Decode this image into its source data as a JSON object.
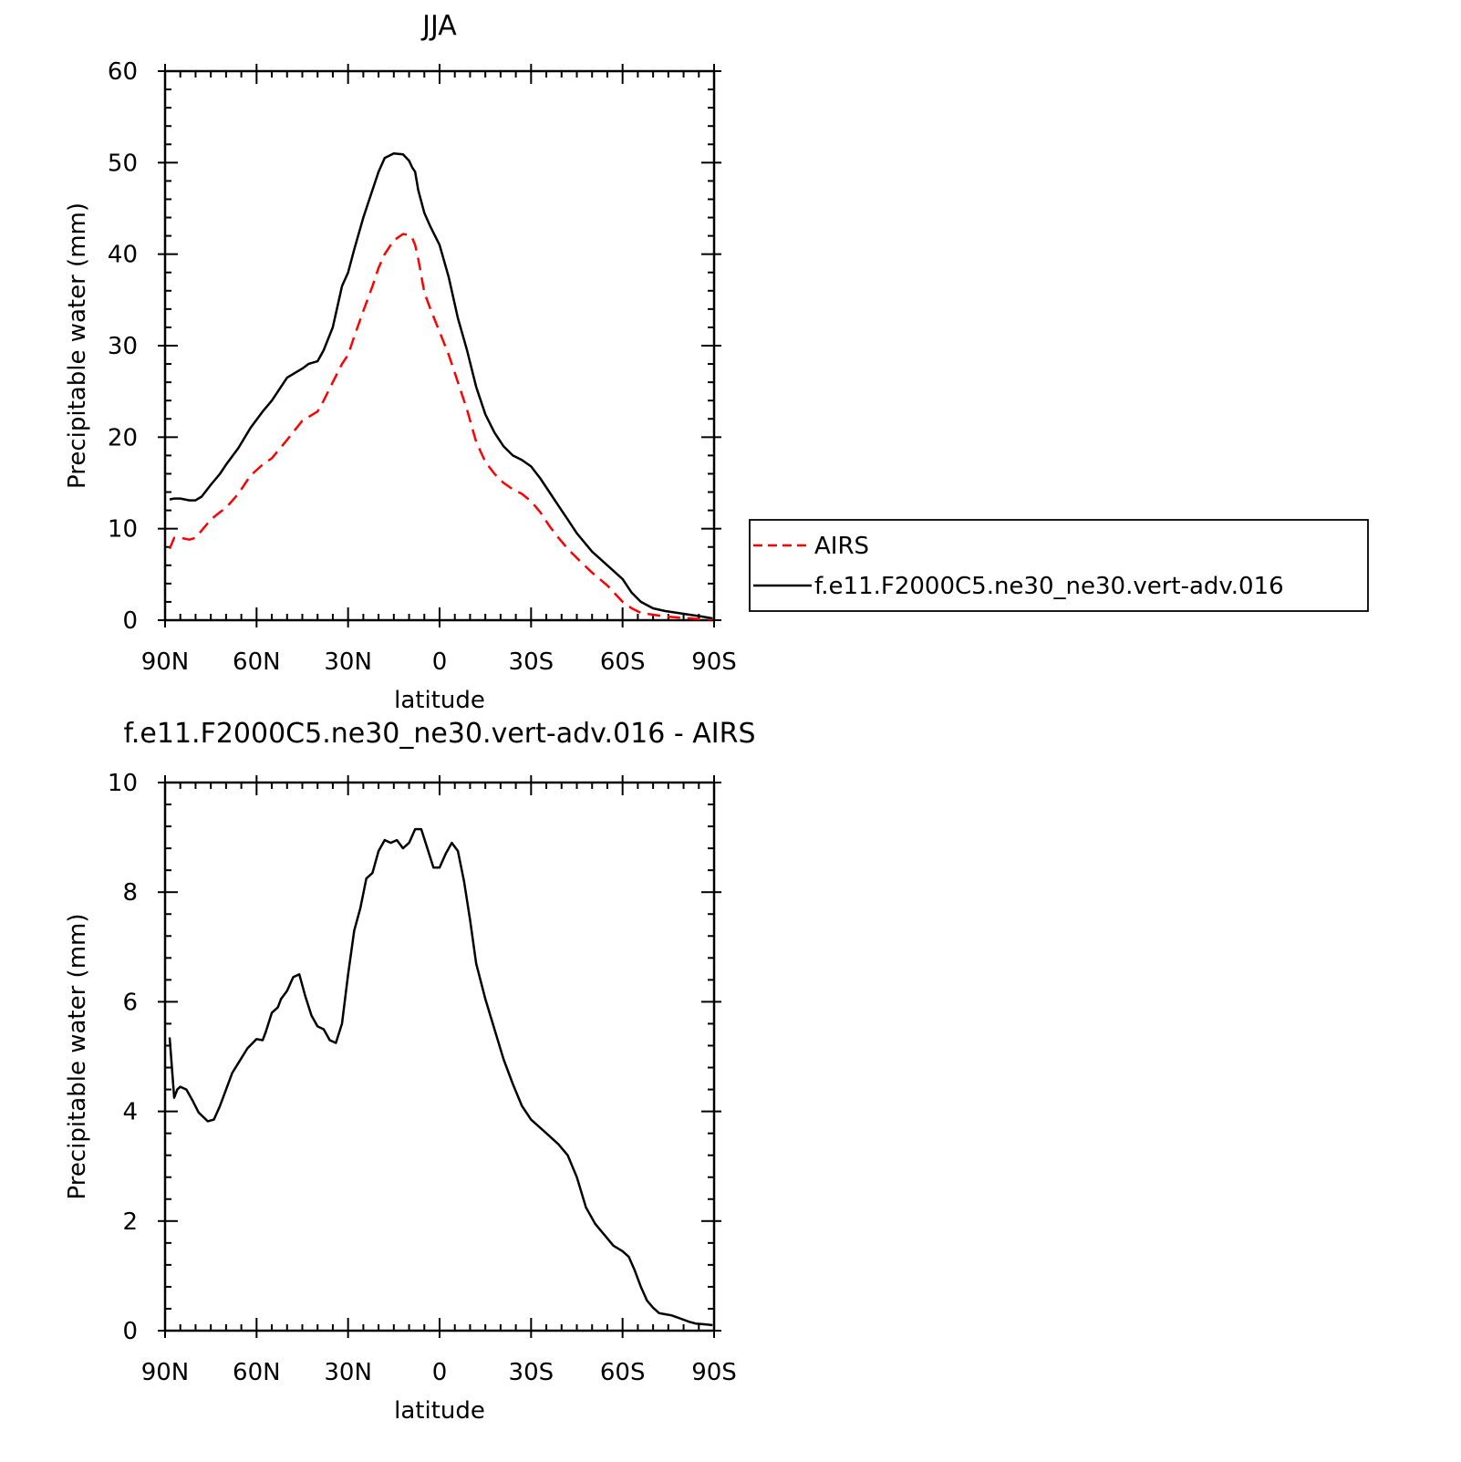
{
  "chart_data": [
    {
      "type": "line",
      "title": "JJA",
      "xlabel": "latitude",
      "ylabel": "Precipitable water (mm)",
      "xlim": [
        -90,
        90
      ],
      "ylim": [
        0,
        60
      ],
      "xticks": [
        -90,
        -60,
        -30,
        0,
        30,
        60,
        90
      ],
      "xtick_labels": [
        "90N",
        "60N",
        "30N",
        "0",
        "30S",
        "60S",
        "90S"
      ],
      "yticks": [
        0,
        10,
        20,
        30,
        40,
        50,
        60
      ],
      "ytick_labels": [
        "0",
        "10",
        "20",
        "30",
        "40",
        "50",
        "60"
      ],
      "legend_position": "right",
      "series": [
        {
          "name": "AIRS",
          "color": "#ff0000",
          "dash": "dashed",
          "x": [
            -88.5,
            -87,
            -85,
            -82,
            -80,
            -78,
            -75,
            -72,
            -70,
            -66,
            -62,
            -58,
            -55,
            -50,
            -45,
            -40,
            -38,
            -35,
            -32,
            -30,
            -28,
            -25,
            -22,
            -20,
            -18,
            -15,
            -12,
            -10,
            -9,
            -8,
            -7,
            -5,
            -3,
            0,
            3,
            6,
            9,
            12,
            15,
            18,
            21,
            24,
            27,
            30,
            33,
            36,
            39,
            42,
            45,
            50,
            55,
            60,
            63,
            66,
            70,
            74,
            78,
            82,
            86,
            89.5
          ],
          "values": [
            7.8,
            9,
            9,
            8.8,
            9,
            9.8,
            11,
            11.8,
            12.3,
            13.8,
            15.8,
            17,
            17.7,
            19.7,
            21.8,
            22.8,
            24,
            26,
            28,
            29,
            31,
            33.8,
            36.5,
            38.5,
            40,
            41.5,
            42.2,
            42.1,
            41.8,
            41,
            39.5,
            35.8,
            34,
            31.5,
            29,
            26,
            23,
            19.5,
            17.3,
            16,
            15,
            14.3,
            13.8,
            13,
            11.8,
            10.3,
            9,
            7.8,
            6.8,
            5.2,
            3.8,
            2,
            1.3,
            0.8,
            0.6,
            0.4,
            0.3,
            0.2,
            0.1,
            0.1
          ]
        },
        {
          "name": "f.e11.F2000C5.ne30_ne30.vert-adv.016",
          "color": "#000000",
          "dash": "solid",
          "x": [
            -88.5,
            -87,
            -85,
            -82,
            -80,
            -78,
            -75,
            -72,
            -70,
            -66,
            -62,
            -58,
            -55,
            -50,
            -45,
            -43,
            -40,
            -38,
            -35,
            -32,
            -30,
            -28,
            -25,
            -22,
            -20,
            -18,
            -15,
            -12,
            -10,
            -9,
            -8,
            -7,
            -5,
            -3,
            0,
            3,
            6,
            9,
            12,
            15,
            18,
            21,
            24,
            27,
            30,
            33,
            36,
            39,
            42,
            45,
            50,
            55,
            60,
            63,
            66,
            70,
            74,
            78,
            82,
            86,
            89.5
          ],
          "values": [
            13.2,
            13.3,
            13.3,
            13.1,
            13.1,
            13.5,
            14.8,
            16,
            17,
            18.8,
            21,
            22.8,
            24,
            26.5,
            27.5,
            28,
            28.3,
            29.5,
            32,
            36.5,
            38,
            40.5,
            44,
            47,
            49,
            50.5,
            51,
            50.9,
            50.2,
            49.5,
            49,
            47,
            44.5,
            43,
            41,
            37.5,
            33,
            29.5,
            25.5,
            22.5,
            20.5,
            19,
            18,
            17.5,
            16.8,
            15.5,
            14,
            12.5,
            11,
            9.5,
            7.5,
            6,
            4.5,
            3,
            2,
            1.3,
            1,
            0.8,
            0.6,
            0.4,
            0.2
          ]
        }
      ]
    },
    {
      "type": "line",
      "title": "f.e11.F2000C5.ne30_ne30.vert-adv.016 - AIRS",
      "xlabel": "latitude",
      "ylabel": "Precipitable water (mm)",
      "xlim": [
        -90,
        90
      ],
      "ylim": [
        0,
        10
      ],
      "xticks": [
        -90,
        -60,
        -30,
        0,
        30,
        60,
        90
      ],
      "xtick_labels": [
        "90N",
        "60N",
        "30N",
        "0",
        "30S",
        "60S",
        "90S"
      ],
      "yticks": [
        0,
        2,
        4,
        6,
        8,
        10
      ],
      "ytick_labels": [
        "0",
        "2",
        "4",
        "6",
        "8",
        "10"
      ],
      "series": [
        {
          "color": "#000000",
          "dash": "solid",
          "x": [
            -88.5,
            -87,
            -86,
            -85,
            -83,
            -81,
            -79,
            -76,
            -74,
            -72,
            -70,
            -68,
            -66,
            -63,
            -60,
            -58,
            -57,
            -55,
            -53,
            -52,
            -50,
            -48,
            -46,
            -44,
            -42,
            -40,
            -38,
            -36,
            -34,
            -32,
            -30,
            -28,
            -26,
            -24,
            -22,
            -20,
            -18,
            -16,
            -14,
            -12,
            -10,
            -8,
            -6,
            -4,
            -2,
            0,
            2,
            4,
            6,
            8,
            10,
            12,
            15,
            18,
            21,
            24,
            27,
            30,
            33,
            36,
            39,
            42,
            45,
            48,
            51,
            54,
            57,
            60,
            62,
            64,
            66,
            68,
            70,
            72,
            74,
            76,
            78,
            80,
            82,
            84,
            86,
            88,
            89.5
          ],
          "values": [
            5.35,
            4.25,
            4.4,
            4.45,
            4.4,
            4.2,
            3.98,
            3.82,
            3.85,
            4.1,
            4.4,
            4.7,
            4.88,
            5.15,
            5.32,
            5.3,
            5.45,
            5.8,
            5.9,
            6.05,
            6.2,
            6.45,
            6.5,
            6.1,
            5.75,
            5.55,
            5.5,
            5.3,
            5.25,
            5.6,
            6.5,
            7.3,
            7.7,
            8.25,
            8.35,
            8.75,
            8.95,
            8.9,
            8.95,
            8.8,
            8.9,
            9.15,
            9.15,
            8.8,
            8.45,
            8.45,
            8.7,
            8.9,
            8.75,
            8.2,
            7.5,
            6.7,
            6.05,
            5.5,
            4.95,
            4.5,
            4.1,
            3.85,
            3.7,
            3.55,
            3.4,
            3.2,
            2.8,
            2.25,
            1.95,
            1.75,
            1.55,
            1.45,
            1.35,
            1.1,
            0.8,
            0.55,
            0.42,
            0.32,
            0.3,
            0.28,
            0.24,
            0.2,
            0.16,
            0.13,
            0.12,
            0.11,
            0.1
          ]
        }
      ]
    }
  ]
}
